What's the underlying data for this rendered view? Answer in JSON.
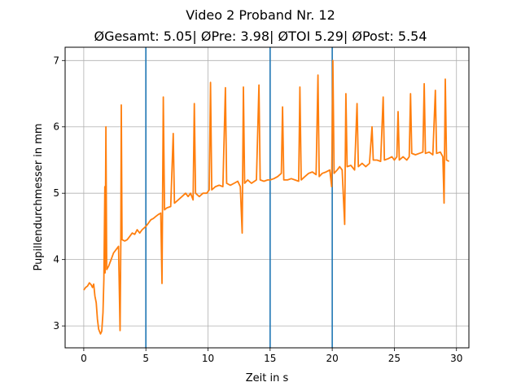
{
  "chart_data": {
    "type": "line",
    "title": "Video 2 Proband Nr. 12",
    "subtitle": "ØGesamt: 5.05| ØPre: 3.98| ØTOI 5.29| ØPost: 5.54",
    "xlabel": "Zeit in s",
    "ylabel": "Pupillendurchmesser in mm",
    "xlim": [
      -1.5,
      31.0
    ],
    "ylim": [
      2.67,
      7.2
    ],
    "xticks": [
      0,
      5,
      10,
      15,
      20,
      25,
      30
    ],
    "yticks": [
      3,
      4,
      5,
      6,
      7
    ],
    "grid": true,
    "line_color": "#ff7f0e",
    "vline_color": "#1f77b4",
    "vlines": [
      5,
      15,
      20
    ],
    "series": [
      {
        "values": [
          [
            0.0,
            3.54
          ],
          [
            0.15,
            3.58
          ],
          [
            0.3,
            3.6
          ],
          [
            0.45,
            3.65
          ],
          [
            0.6,
            3.62
          ],
          [
            0.7,
            3.58
          ],
          [
            0.8,
            3.63
          ],
          [
            0.9,
            3.45
          ],
          [
            1.0,
            3.35
          ],
          [
            1.1,
            3.1
          ],
          [
            1.2,
            2.95
          ],
          [
            1.35,
            2.88
          ],
          [
            1.45,
            2.92
          ],
          [
            1.55,
            3.2
          ],
          [
            1.62,
            3.7
          ],
          [
            1.7,
            5.1
          ],
          [
            1.72,
            3.8
          ],
          [
            1.78,
            6.0
          ],
          [
            1.85,
            3.85
          ],
          [
            2.0,
            3.9
          ],
          [
            2.2,
            4.0
          ],
          [
            2.4,
            4.1
          ],
          [
            2.6,
            4.15
          ],
          [
            2.8,
            4.2
          ],
          [
            2.92,
            2.93
          ],
          [
            2.98,
            4.25
          ],
          [
            3.02,
            6.33
          ],
          [
            3.08,
            4.3
          ],
          [
            3.3,
            4.28
          ],
          [
            3.5,
            4.3
          ],
          [
            3.7,
            4.35
          ],
          [
            3.9,
            4.4
          ],
          [
            4.1,
            4.38
          ],
          [
            4.3,
            4.45
          ],
          [
            4.5,
            4.4
          ],
          [
            4.7,
            4.45
          ],
          [
            5.0,
            4.5
          ],
          [
            5.2,
            4.55
          ],
          [
            5.4,
            4.6
          ],
          [
            5.6,
            4.62
          ],
          [
            5.8,
            4.65
          ],
          [
            6.0,
            4.68
          ],
          [
            6.2,
            4.7
          ],
          [
            6.3,
            3.64
          ],
          [
            6.4,
            6.45
          ],
          [
            6.5,
            4.75
          ],
          [
            6.7,
            4.78
          ],
          [
            7.0,
            4.8
          ],
          [
            7.2,
            5.9
          ],
          [
            7.3,
            4.85
          ],
          [
            7.6,
            4.9
          ],
          [
            7.9,
            4.95
          ],
          [
            8.2,
            5.0
          ],
          [
            8.4,
            4.95
          ],
          [
            8.6,
            5.0
          ],
          [
            8.8,
            4.9
          ],
          [
            8.9,
            6.35
          ],
          [
            9.0,
            5.0
          ],
          [
            9.3,
            4.95
          ],
          [
            9.6,
            5.0
          ],
          [
            9.9,
            5.0
          ],
          [
            10.1,
            5.05
          ],
          [
            10.2,
            6.67
          ],
          [
            10.3,
            5.05
          ],
          [
            10.6,
            5.1
          ],
          [
            10.9,
            5.12
          ],
          [
            11.2,
            5.1
          ],
          [
            11.4,
            6.59
          ],
          [
            11.5,
            5.15
          ],
          [
            11.8,
            5.12
          ],
          [
            12.1,
            5.15
          ],
          [
            12.4,
            5.18
          ],
          [
            12.6,
            5.1
          ],
          [
            12.75,
            4.4
          ],
          [
            12.85,
            6.6
          ],
          [
            12.95,
            5.15
          ],
          [
            13.2,
            5.2
          ],
          [
            13.5,
            5.15
          ],
          [
            13.9,
            5.2
          ],
          [
            14.1,
            6.63
          ],
          [
            14.2,
            5.2
          ],
          [
            14.5,
            5.18
          ],
          [
            14.8,
            5.2
          ],
          [
            15.0,
            5.2
          ],
          [
            15.3,
            5.22
          ],
          [
            15.6,
            5.25
          ],
          [
            15.9,
            5.3
          ],
          [
            16.0,
            6.3
          ],
          [
            16.1,
            5.2
          ],
          [
            16.4,
            5.2
          ],
          [
            16.7,
            5.22
          ],
          [
            17.0,
            5.2
          ],
          [
            17.3,
            5.18
          ],
          [
            17.4,
            6.6
          ],
          [
            17.5,
            5.2
          ],
          [
            17.8,
            5.25
          ],
          [
            18.1,
            5.3
          ],
          [
            18.4,
            5.32
          ],
          [
            18.7,
            5.28
          ],
          [
            18.85,
            6.78
          ],
          [
            18.95,
            5.25
          ],
          [
            19.2,
            5.3
          ],
          [
            19.5,
            5.32
          ],
          [
            19.8,
            5.35
          ],
          [
            19.95,
            5.1
          ],
          [
            20.05,
            7.0
          ],
          [
            20.15,
            5.3
          ],
          [
            20.4,
            5.35
          ],
          [
            20.6,
            5.4
          ],
          [
            20.8,
            5.35
          ],
          [
            21.0,
            4.53
          ],
          [
            21.1,
            6.5
          ],
          [
            21.2,
            5.4
          ],
          [
            21.5,
            5.42
          ],
          [
            21.8,
            5.35
          ],
          [
            22.0,
            6.35
          ],
          [
            22.1,
            5.4
          ],
          [
            22.4,
            5.45
          ],
          [
            22.7,
            5.4
          ],
          [
            23.0,
            5.45
          ],
          [
            23.2,
            6.0
          ],
          [
            23.3,
            5.5
          ],
          [
            23.6,
            5.5
          ],
          [
            23.9,
            5.48
          ],
          [
            24.1,
            6.45
          ],
          [
            24.2,
            5.5
          ],
          [
            24.5,
            5.52
          ],
          [
            24.8,
            5.55
          ],
          [
            25.0,
            5.5
          ],
          [
            25.2,
            5.55
          ],
          [
            25.3,
            6.23
          ],
          [
            25.4,
            5.5
          ],
          [
            25.7,
            5.55
          ],
          [
            26.0,
            5.5
          ],
          [
            26.2,
            5.55
          ],
          [
            26.3,
            6.5
          ],
          [
            26.4,
            5.6
          ],
          [
            26.7,
            5.58
          ],
          [
            27.0,
            5.6
          ],
          [
            27.3,
            5.62
          ],
          [
            27.4,
            6.65
          ],
          [
            27.5,
            5.6
          ],
          [
            27.8,
            5.62
          ],
          [
            28.1,
            5.58
          ],
          [
            28.3,
            6.55
          ],
          [
            28.4,
            5.6
          ],
          [
            28.7,
            5.62
          ],
          [
            28.9,
            5.55
          ],
          [
            29.0,
            4.85
          ],
          [
            29.1,
            6.72
          ],
          [
            29.2,
            5.5
          ],
          [
            29.4,
            5.48
          ]
        ]
      }
    ]
  }
}
